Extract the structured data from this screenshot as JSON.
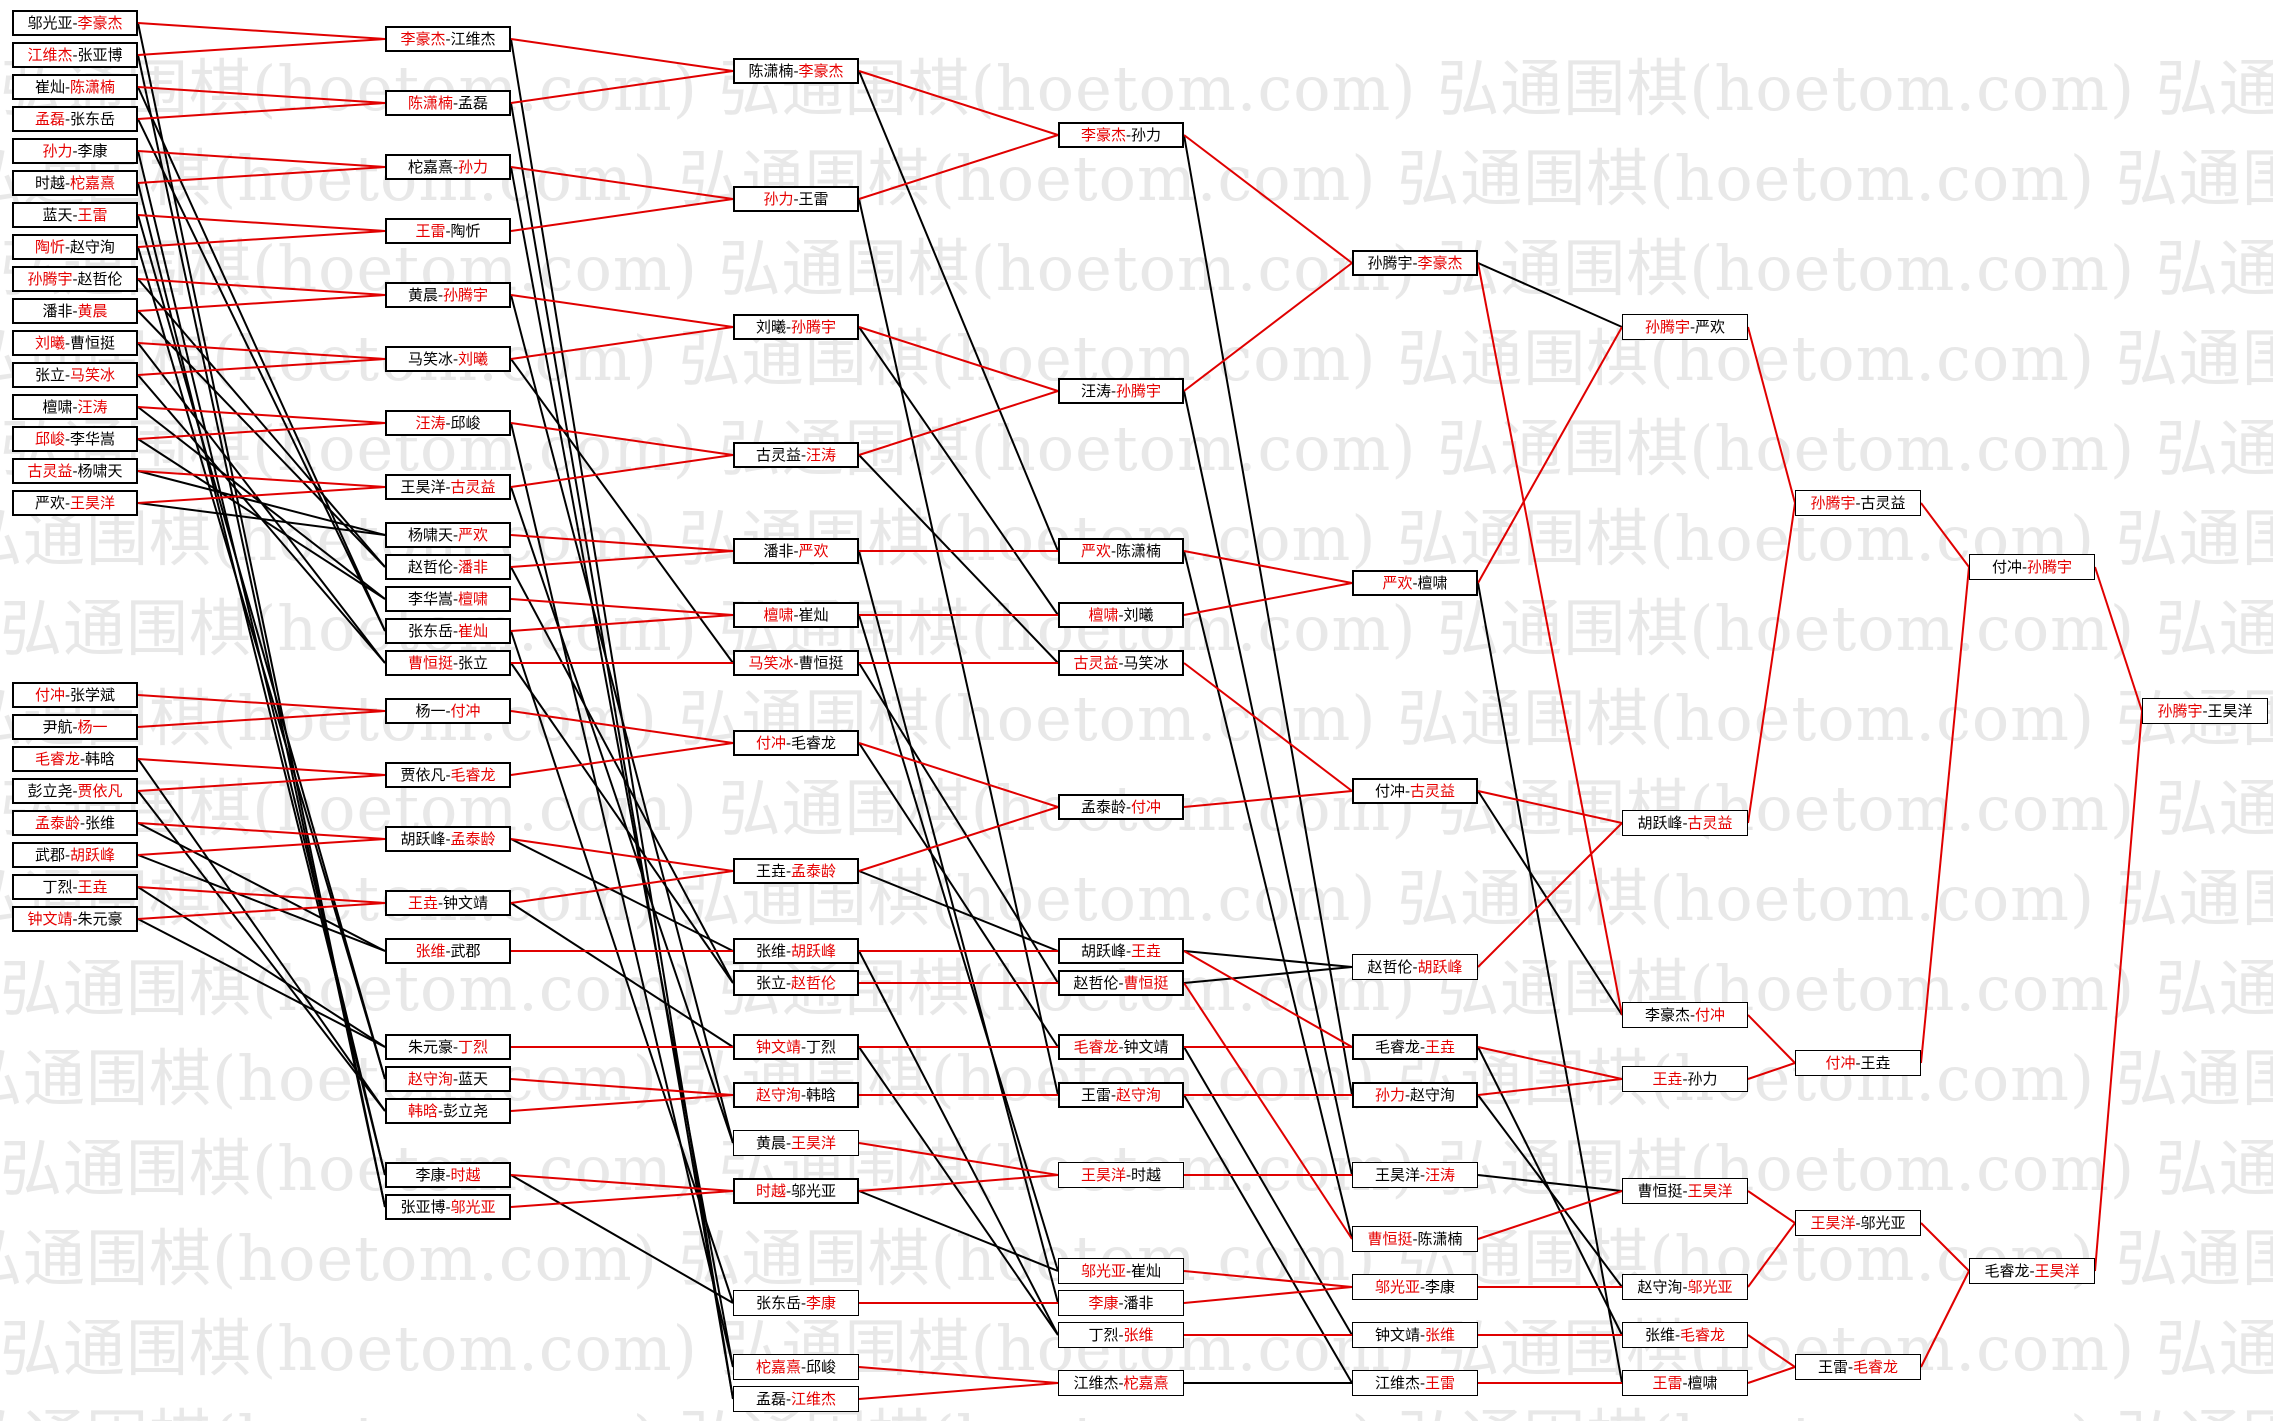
{
  "watermark": "弘通围棋(hoetom.com)",
  "colors": {
    "winner": "#e60000",
    "text": "#000000",
    "winner_line": "#e00000",
    "loser_line": "#000000",
    "watermark": "#e8e8e8"
  },
  "columns": [
    [
      {
        "id": "a1",
        "p1": "邬光亚",
        "p2": "李豪杰",
        "w": 2
      },
      {
        "id": "a2",
        "p1": "江维杰",
        "p2": "张亚博",
        "w": 1
      },
      {
        "id": "a3",
        "p1": "崔灿",
        "p2": "陈潇楠",
        "w": 2
      },
      {
        "id": "a4",
        "p1": "孟磊",
        "p2": "张东岳",
        "w": 1
      },
      {
        "id": "a5",
        "p1": "孙力",
        "p2": "李康",
        "w": 1
      },
      {
        "id": "a6",
        "p1": "时越",
        "p2": "柁嘉熹",
        "w": 2
      },
      {
        "id": "a7",
        "p1": "蓝天",
        "p2": "王雷",
        "w": 2
      },
      {
        "id": "a8",
        "p1": "陶忻",
        "p2": "赵守洵",
        "w": 1
      },
      {
        "id": "a9",
        "p1": "孙腾宇",
        "p2": "赵哲伦",
        "w": 1
      },
      {
        "id": "a10",
        "p1": "潘非",
        "p2": "黄晨",
        "w": 2
      },
      {
        "id": "a11",
        "p1": "刘曦",
        "p2": "曹恒挺",
        "w": 1
      },
      {
        "id": "a12",
        "p1": "张立",
        "p2": "马笑冰",
        "w": 2
      },
      {
        "id": "a13",
        "p1": "檀啸",
        "p2": "汪涛",
        "w": 2
      },
      {
        "id": "a14",
        "p1": "邱峻",
        "p2": "李华嵩",
        "w": 1
      },
      {
        "id": "a15",
        "p1": "古灵益",
        "p2": "杨啸天",
        "w": 1
      },
      {
        "id": "a16",
        "p1": "严欢",
        "p2": "王昊洋",
        "w": 2
      },
      {
        "id": "a17",
        "p1": "付冲",
        "p2": "张学斌",
        "w": 1
      },
      {
        "id": "a18",
        "p1": "尹航",
        "p2": "杨一",
        "w": 2
      },
      {
        "id": "a19",
        "p1": "毛睿龙",
        "p2": "韩晗",
        "w": 1
      },
      {
        "id": "a20",
        "p1": "彭立尧",
        "p2": "贾依凡",
        "w": 2
      },
      {
        "id": "a21",
        "p1": "孟泰龄",
        "p2": "张维",
        "w": 1
      },
      {
        "id": "a22",
        "p1": "武郡",
        "p2": "胡跃峰",
        "w": 2
      },
      {
        "id": "a23",
        "p1": "丁烈",
        "p2": "王垚",
        "w": 2
      },
      {
        "id": "a24",
        "p1": "钟文靖",
        "p2": "朱元豪",
        "w": 1
      }
    ],
    [
      {
        "id": "b1",
        "p1": "李豪杰",
        "p2": "江维杰",
        "w": 1
      },
      {
        "id": "b2",
        "p1": "陈潇楠",
        "p2": "孟磊",
        "w": 1
      },
      {
        "id": "b3",
        "p1": "柁嘉熹",
        "p2": "孙力",
        "w": 2
      },
      {
        "id": "b4",
        "p1": "王雷",
        "p2": "陶忻",
        "w": 1
      },
      {
        "id": "b5",
        "p1": "黄晨",
        "p2": "孙腾宇",
        "w": 2
      },
      {
        "id": "b6",
        "p1": "马笑冰",
        "p2": "刘曦",
        "w": 2
      },
      {
        "id": "b7",
        "p1": "汪涛",
        "p2": "邱峻",
        "w": 1
      },
      {
        "id": "b8",
        "p1": "王昊洋",
        "p2": "古灵益",
        "w": 2
      },
      {
        "id": "b9",
        "p1": "杨啸天",
        "p2": "严欢",
        "w": 2
      },
      {
        "id": "b10",
        "p1": "赵哲伦",
        "p2": "潘非",
        "w": 2
      },
      {
        "id": "b11",
        "p1": "李华嵩",
        "p2": "檀啸",
        "w": 2
      },
      {
        "id": "b12",
        "p1": "张东岳",
        "p2": "崔灿",
        "w": 2
      },
      {
        "id": "b13",
        "p1": "曹恒挺",
        "p2": "张立",
        "w": 1
      },
      {
        "id": "b14",
        "p1": "杨一",
        "p2": "付冲",
        "w": 2
      },
      {
        "id": "b15",
        "p1": "贾依凡",
        "p2": "毛睿龙",
        "w": 2
      },
      {
        "id": "b16",
        "p1": "胡跃峰",
        "p2": "孟泰龄",
        "w": 2
      },
      {
        "id": "b17",
        "p1": "王垚",
        "p2": "钟文靖",
        "w": 1
      },
      {
        "id": "b18",
        "p1": "张维",
        "p2": "武郡",
        "w": 1
      },
      {
        "id": "b19",
        "p1": "朱元豪",
        "p2": "丁烈",
        "w": 2
      },
      {
        "id": "b20",
        "p1": "赵守洵",
        "p2": "蓝天",
        "w": 1
      },
      {
        "id": "b21",
        "p1": "韩晗",
        "p2": "彭立尧",
        "w": 1
      },
      {
        "id": "b22",
        "p1": "李康",
        "p2": "时越",
        "w": 2
      },
      {
        "id": "b23",
        "p1": "张亚博",
        "p2": "邬光亚",
        "w": 2
      }
    ],
    [
      {
        "id": "c1",
        "p1": "陈潇楠",
        "p2": "李豪杰",
        "w": 2
      },
      {
        "id": "c2",
        "p1": "孙力",
        "p2": "王雷",
        "w": 1
      },
      {
        "id": "c3",
        "p1": "刘曦",
        "p2": "孙腾宇",
        "w": 2
      },
      {
        "id": "c4",
        "p1": "古灵益",
        "p2": "汪涛",
        "w": 2
      },
      {
        "id": "c5",
        "p1": "潘非",
        "p2": "严欢",
        "w": 2
      },
      {
        "id": "c6",
        "p1": "檀啸",
        "p2": "崔灿",
        "w": 1
      },
      {
        "id": "c7",
        "p1": "马笑冰",
        "p2": "曹恒挺",
        "w": 1
      },
      {
        "id": "c8",
        "p1": "付冲",
        "p2": "毛睿龙",
        "w": 1
      },
      {
        "id": "c9",
        "p1": "王垚",
        "p2": "孟泰龄",
        "w": 2
      },
      {
        "id": "c10",
        "p1": "张维",
        "p2": "胡跃峰",
        "w": 2
      },
      {
        "id": "c11",
        "p1": "张立",
        "p2": "赵哲伦",
        "w": 2
      },
      {
        "id": "c12",
        "p1": "钟文靖",
        "p2": "丁烈",
        "w": 1
      },
      {
        "id": "c13",
        "p1": "赵守洵",
        "p2": "韩晗",
        "w": 1
      },
      {
        "id": "c14",
        "p1": "黄晨",
        "p2": "王昊洋",
        "w": 2,
        "thin": true
      },
      {
        "id": "c15",
        "p1": "时越",
        "p2": "邬光亚",
        "w": 1
      },
      {
        "id": "c16",
        "p1": "张东岳",
        "p2": "李康",
        "w": 2,
        "thin": true
      },
      {
        "id": "c17",
        "p1": "柁嘉熹",
        "p2": "邱峻",
        "w": 1,
        "thin": true
      },
      {
        "id": "c18",
        "p1": "孟磊",
        "p2": "江维杰",
        "w": 2,
        "thin": true
      }
    ],
    [
      {
        "id": "d1",
        "p1": "李豪杰",
        "p2": "孙力",
        "w": 1
      },
      {
        "id": "d2",
        "p1": "汪涛",
        "p2": "孙腾宇",
        "w": 2
      },
      {
        "id": "d3",
        "p1": "严欢",
        "p2": "陈潇楠",
        "w": 1
      },
      {
        "id": "d4",
        "p1": "檀啸",
        "p2": "刘曦",
        "w": 1
      },
      {
        "id": "d5",
        "p1": "古灵益",
        "p2": "马笑冰",
        "w": 1
      },
      {
        "id": "d6",
        "p1": "孟泰龄",
        "p2": "付冲",
        "w": 2
      },
      {
        "id": "d7",
        "p1": "胡跃峰",
        "p2": "王垚",
        "w": 2
      },
      {
        "id": "d8",
        "p1": "赵哲伦",
        "p2": "曹恒挺",
        "w": 2
      },
      {
        "id": "d9",
        "p1": "毛睿龙",
        "p2": "钟文靖",
        "w": 1
      },
      {
        "id": "d10",
        "p1": "王雷",
        "p2": "赵守洵",
        "w": 2
      },
      {
        "id": "d11",
        "p1": "王昊洋",
        "p2": "时越",
        "w": 1,
        "thin": true
      },
      {
        "id": "d12",
        "p1": "邬光亚",
        "p2": "崔灿",
        "w": 1,
        "thin": true
      },
      {
        "id": "d13",
        "p1": "李康",
        "p2": "潘非",
        "w": 1,
        "thin": true
      },
      {
        "id": "d14",
        "p1": "丁烈",
        "p2": "张维",
        "w": 2,
        "thin": true
      },
      {
        "id": "d15",
        "p1": "江维杰",
        "p2": "柁嘉熹",
        "w": 2,
        "thin": true
      }
    ],
    [
      {
        "id": "e1",
        "p1": "孙腾宇",
        "p2": "李豪杰",
        "w": 2
      },
      {
        "id": "e2",
        "p1": "严欢",
        "p2": "檀啸",
        "w": 1
      },
      {
        "id": "e3",
        "p1": "付冲",
        "p2": "古灵益",
        "w": 2
      },
      {
        "id": "e4",
        "p1": "赵哲伦",
        "p2": "胡跃峰",
        "w": 2,
        "thin": true
      },
      {
        "id": "e5",
        "p1": "毛睿龙",
        "p2": "王垚",
        "w": 2
      },
      {
        "id": "e6",
        "p1": "孙力",
        "p2": "赵守洵",
        "w": 1
      },
      {
        "id": "e7",
        "p1": "王昊洋",
        "p2": "汪涛",
        "w": 2,
        "thin": true
      },
      {
        "id": "e8",
        "p1": "曹恒挺",
        "p2": "陈潇楠",
        "w": 1,
        "thin": true
      },
      {
        "id": "e9",
        "p1": "邬光亚",
        "p2": "李康",
        "w": 1,
        "thin": true
      },
      {
        "id": "e10",
        "p1": "钟文靖",
        "p2": "张维",
        "w": 2,
        "thin": true
      },
      {
        "id": "e11",
        "p1": "江维杰",
        "p2": "王雷",
        "w": 2,
        "thin": true
      }
    ],
    [
      {
        "id": "f1",
        "p1": "孙腾宇",
        "p2": "严欢",
        "w": 1,
        "thin": true
      },
      {
        "id": "f2",
        "p1": "胡跃峰",
        "p2": "古灵益",
        "w": 2,
        "thin": true
      },
      {
        "id": "f3",
        "p1": "李豪杰",
        "p2": "付冲",
        "w": 2,
        "thin": true
      },
      {
        "id": "f4",
        "p1": "王垚",
        "p2": "孙力",
        "w": 1,
        "thin": true
      },
      {
        "id": "f5",
        "p1": "曹恒挺",
        "p2": "王昊洋",
        "w": 2,
        "thin": true
      },
      {
        "id": "f6",
        "p1": "赵守洵",
        "p2": "邬光亚",
        "w": 2,
        "thin": true
      },
      {
        "id": "f7",
        "p1": "张维",
        "p2": "毛睿龙",
        "w": 2,
        "thin": true
      },
      {
        "id": "f8",
        "p1": "王雷",
        "p2": "檀啸",
        "w": 1,
        "thin": true
      }
    ],
    [
      {
        "id": "g1",
        "p1": "孙腾宇",
        "p2": "古灵益",
        "w": 1,
        "thin": true
      },
      {
        "id": "g2",
        "p1": "付冲",
        "p2": "王垚",
        "w": 1,
        "thin": true
      },
      {
        "id": "g3",
        "p1": "王昊洋",
        "p2": "邬光亚",
        "w": 1,
        "thin": true
      },
      {
        "id": "g4",
        "p1": "王雷",
        "p2": "毛睿龙",
        "w": 2,
        "thin": true
      }
    ],
    [
      {
        "id": "h1",
        "p1": "付冲",
        "p2": "孙腾宇",
        "w": 2,
        "thin": true
      },
      {
        "id": "h2",
        "p1": "毛睿龙",
        "p2": "王昊洋",
        "w": 2,
        "thin": true
      }
    ],
    [
      {
        "id": "i1",
        "p1": "孙腾宇",
        "p2": "王昊洋",
        "w": 1,
        "thin": true
      }
    ]
  ]
}
